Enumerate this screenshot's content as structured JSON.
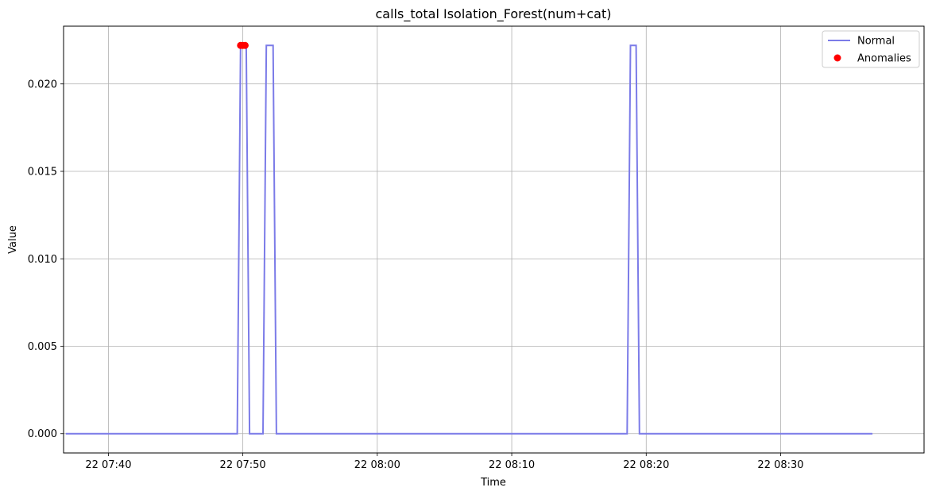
{
  "chart_data": {
    "type": "line",
    "title": "calls_total Isolation_Forest(num+cat)",
    "xlabel": "Time",
    "ylabel": "Value",
    "x_axis": {
      "kind": "time",
      "range": [
        "2024-01-22 07:36:40",
        "2024-01-22 08:40:40"
      ],
      "ticks": [
        {
          "t": "2024-01-22 07:40",
          "label": "22 07:40"
        },
        {
          "t": "2024-01-22 07:50",
          "label": "22 07:50"
        },
        {
          "t": "2024-01-22 08:00",
          "label": "22 08:00"
        },
        {
          "t": "2024-01-22 08:10",
          "label": "22 08:10"
        },
        {
          "t": "2024-01-22 08:20",
          "label": "22 08:20"
        },
        {
          "t": "2024-01-22 08:30",
          "label": "22 08:30"
        }
      ]
    },
    "y_axis": {
      "range": [
        -0.0011,
        0.0233
      ],
      "ticks": [
        {
          "v": 0.0,
          "label": "0.000"
        },
        {
          "v": 0.005,
          "label": "0.005"
        },
        {
          "v": 0.01,
          "label": "0.010"
        },
        {
          "v": 0.015,
          "label": "0.015"
        },
        {
          "v": 0.02,
          "label": "0.020"
        }
      ]
    },
    "grid": true,
    "legend_position": "top-right",
    "series": [
      {
        "name": "Normal",
        "kind": "line",
        "color": "#7b7be8",
        "points": [
          [
            "2024-01-22 07:36:50",
            0.0
          ],
          [
            "2024-01-22 07:49:35",
            0.0
          ],
          [
            "2024-01-22 07:49:50",
            0.0222
          ],
          [
            "2024-01-22 07:50:15",
            0.0222
          ],
          [
            "2024-01-22 07:50:30",
            0.0
          ],
          [
            "2024-01-22 07:51:30",
            0.0
          ],
          [
            "2024-01-22 07:51:45",
            0.0222
          ],
          [
            "2024-01-22 07:52:15",
            0.0222
          ],
          [
            "2024-01-22 07:52:30",
            0.0
          ],
          [
            "2024-01-22 08:18:35",
            0.0
          ],
          [
            "2024-01-22 08:18:50",
            0.0222
          ],
          [
            "2024-01-22 08:19:15",
            0.0222
          ],
          [
            "2024-01-22 08:19:30",
            0.0
          ],
          [
            "2024-01-22 08:36:50",
            0.0
          ]
        ]
      },
      {
        "name": "Anomalies",
        "kind": "scatter",
        "color": "#ff0000",
        "points": [
          [
            "2024-01-22 07:49:50",
            0.0222
          ],
          [
            "2024-01-22 07:50:00",
            0.0222
          ],
          [
            "2024-01-22 07:50:10",
            0.0222
          ]
        ]
      }
    ]
  }
}
